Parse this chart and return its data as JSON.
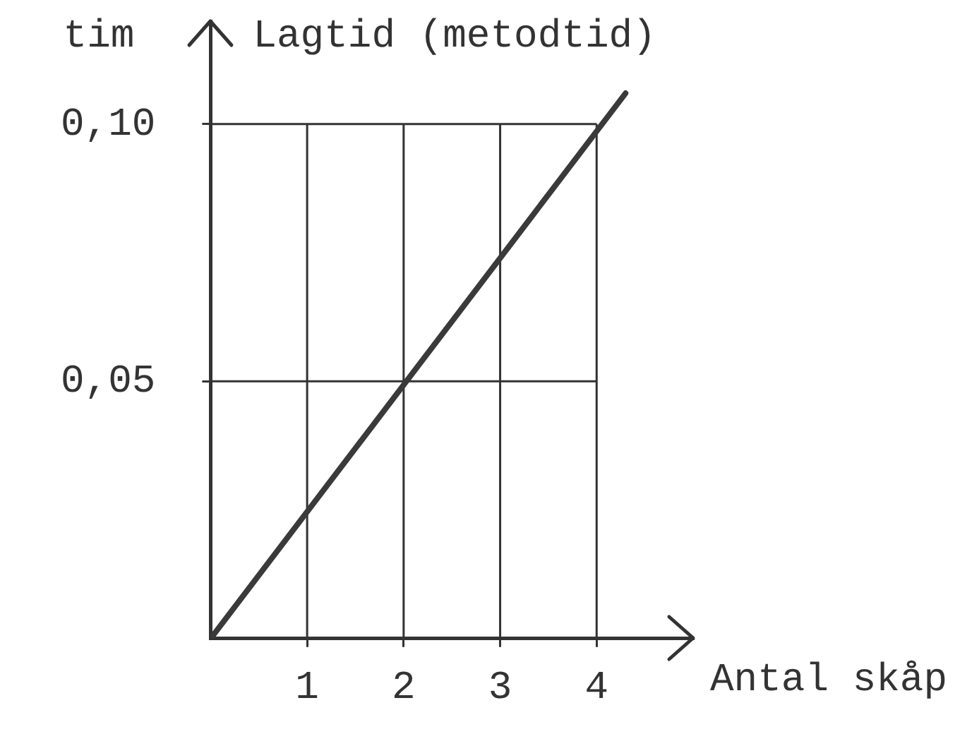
{
  "chart_data": {
    "type": "line",
    "title": "Lagtid (metodtid)",
    "ylabel": "tim",
    "xlabel": "Antal skåp",
    "x": [
      0,
      4.3
    ],
    "series": [
      {
        "color": "#3a3a3a",
        "values": [
          0,
          0.106
        ]
      }
    ],
    "xlim": [
      0,
      5
    ],
    "ylim": [
      0,
      0.12
    ],
    "xticks": [
      1,
      2,
      3,
      4
    ],
    "yticks": [
      {
        "value": 0.05,
        "label": "0,05"
      },
      {
        "value": 0.1,
        "label": "0,10"
      }
    ],
    "grid": true,
    "marker": "none",
    "line_style": "solid"
  }
}
